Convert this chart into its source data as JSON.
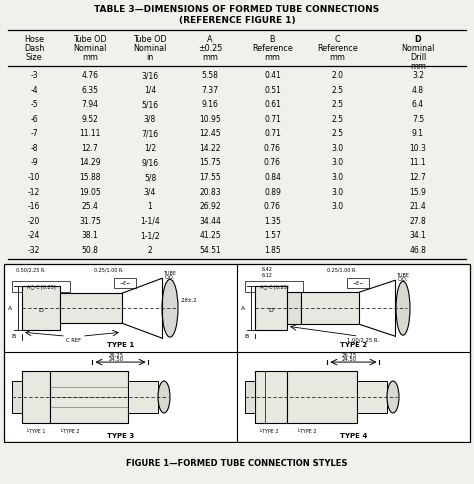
{
  "title_line1": "TABLE 3—DIMENSIONS OF FORMED TUBE CONNECTIONS",
  "title_line2": "(REFERENCE FIGURE 1)",
  "col_headers_line1": [
    "Hose",
    "Tube OD",
    "Tube OD",
    "A",
    "B",
    "C",
    "D"
  ],
  "col_headers_line2": [
    "Dash",
    "Nominal",
    "Nominal",
    "±0.25",
    "Reference",
    "Reference",
    "Nominal"
  ],
  "col_headers_line3": [
    "Size",
    "mm",
    "in",
    "mm",
    "mm",
    "mm",
    "Drill"
  ],
  "col_headers_line4": [
    "",
    "",
    "",
    "",
    "",
    "",
    "mm"
  ],
  "rows": [
    [
      "-3",
      "4.76",
      "3/16",
      "5.58",
      "0.41",
      "2.0",
      "3.2"
    ],
    [
      "-4",
      "6.35",
      "1/4",
      "7.37",
      "0.51",
      "2.5",
      "4.8"
    ],
    [
      "-5",
      "7.94",
      "5/16",
      "9.16",
      "0.61",
      "2.5",
      "6.4"
    ],
    [
      "-6",
      "9.52",
      "3/8",
      "10.95",
      "0.71",
      "2.5",
      "7.5"
    ],
    [
      "-7",
      "11.11",
      "7/16",
      "12.45",
      "0.71",
      "2.5",
      "9.1"
    ],
    [
      "-8",
      "12.7",
      "1/2",
      "14.22",
      "0.76",
      "3.0",
      "10.3"
    ],
    [
      "-9",
      "14.29",
      "9/16",
      "15.75",
      "0.76",
      "3.0",
      "11.1"
    ],
    [
      "-10",
      "15.88",
      "5/8",
      "17.55",
      "0.84",
      "3.0",
      "12.7"
    ],
    [
      "-12",
      "19.05",
      "3/4",
      "20.83",
      "0.89",
      "3.0",
      "15.9"
    ],
    [
      "-16",
      "25.4",
      "1",
      "26.92",
      "0.76",
      "3.0",
      "21.4"
    ],
    [
      "-20",
      "31.75",
      "1-1/4",
      "34.44",
      "1.35",
      "",
      "27.8"
    ],
    [
      "-24",
      "38.1",
      "1-1/2",
      "41.25",
      "1.57",
      "",
      "34.1"
    ],
    [
      "-32",
      "50.8",
      "2",
      "54.51",
      "1.85",
      "",
      "46.8"
    ]
  ],
  "figure_caption": "FIGURE 1—FORMED TUBE CONNECTION STYLES",
  "bg_color": "#f2f0ec",
  "white": "#ffffff",
  "text_color": "#000000"
}
